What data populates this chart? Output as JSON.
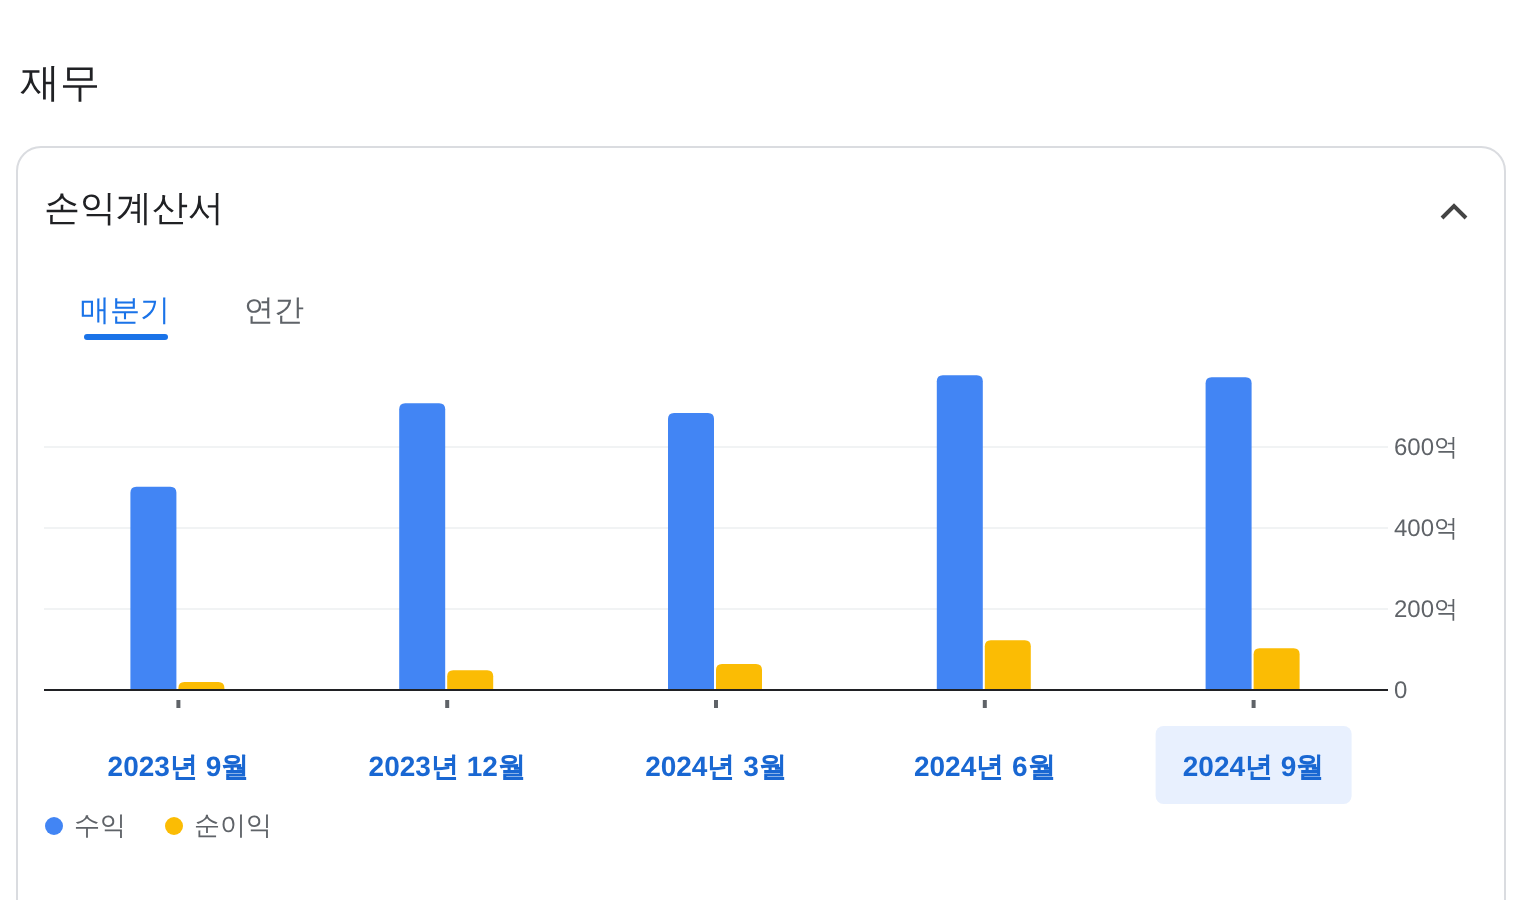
{
  "chart_data": {
    "type": "bar",
    "title": "재무",
    "subtitle": "손익계산서",
    "annotations": [
      "매분기",
      "연간"
    ],
    "categories": [
      "2023년 9월",
      "2023년 12월",
      "2024년 3월",
      "2024년 6월",
      "2024년 9월"
    ],
    "series": [
      {
        "name": "수익",
        "color": "#4285f4",
        "values": [
          502,
          708,
          684,
          777,
          772
        ]
      },
      {
        "name": "순이익",
        "color": "#fbbc04",
        "values": [
          20,
          49,
          64,
          123,
          103
        ]
      }
    ],
    "ylim": [
      0,
      790
    ],
    "yticks": [
      0,
      {
        "value": 200,
        "label": "200억"
      },
      {
        "value": 400,
        "label": "400억"
      },
      {
        "value": 600,
        "label": "600억"
      }
    ],
    "grid": "y",
    "legend": "bottom left"
  }
}
